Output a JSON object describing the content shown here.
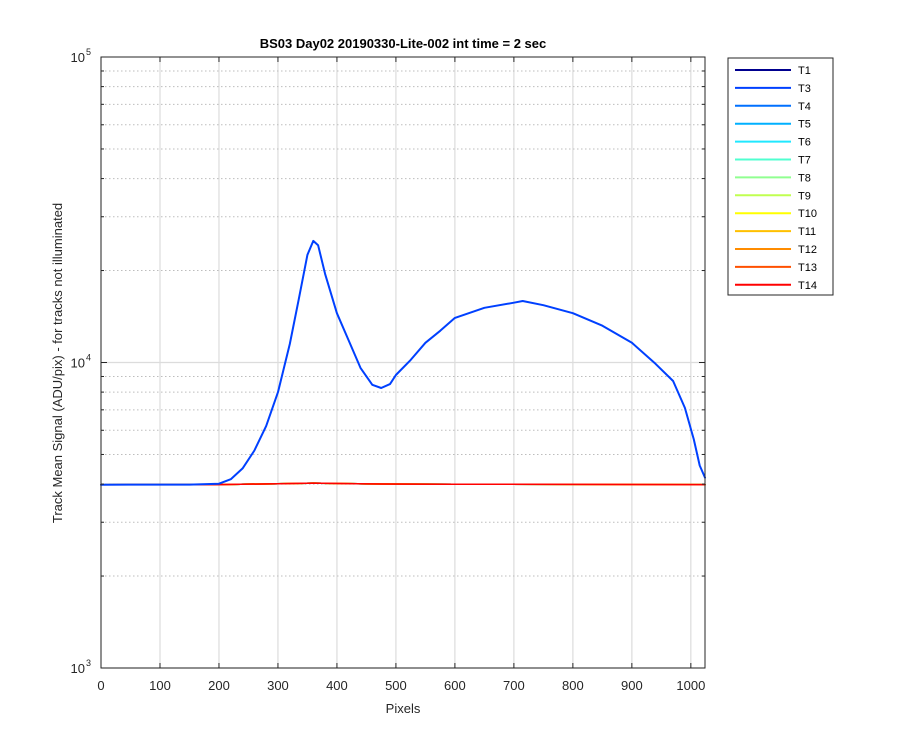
{
  "chart_data": {
    "type": "line",
    "title": "BS03 Day02 20190330-Lite-002 int time = 2 sec",
    "xlabel": "Pixels",
    "ylabel": "Track Mean Signal (ADU/pix) - for tracks not illuminated",
    "xlim": [
      0,
      1024
    ],
    "ylim": [
      1000,
      100000
    ],
    "yscale": "log",
    "grid": true,
    "legend_position": "outside-top-right",
    "x_ticks": [
      0,
      100,
      200,
      300,
      400,
      500,
      600,
      700,
      800,
      900,
      1000
    ],
    "y_tick_labels": [
      {
        "base": "10",
        "exp": "3",
        "value": 1000
      },
      {
        "base": "10",
        "exp": "4",
        "value": 10000
      },
      {
        "base": "10",
        "exp": "5",
        "value": 100000
      }
    ],
    "series": [
      {
        "name": "T1",
        "color": "#00008f",
        "profile": "flat"
      },
      {
        "name": "T3",
        "color": "#0040ff",
        "profile": "peak",
        "linewidth": 2,
        "points": [
          [
            0,
            3980
          ],
          [
            150,
            3985
          ],
          [
            200,
            4010
          ],
          [
            220,
            4150
          ],
          [
            240,
            4500
          ],
          [
            260,
            5150
          ],
          [
            280,
            6200
          ],
          [
            300,
            8000
          ],
          [
            320,
            11500
          ],
          [
            335,
            16000
          ],
          [
            350,
            22500
          ],
          [
            360,
            25000
          ],
          [
            368,
            24200
          ],
          [
            380,
            19500
          ],
          [
            400,
            14500
          ],
          [
            420,
            11800
          ],
          [
            440,
            9600
          ],
          [
            460,
            8450
          ],
          [
            475,
            8250
          ],
          [
            490,
            8500
          ],
          [
            500,
            9100
          ],
          [
            525,
            10200
          ],
          [
            550,
            11600
          ],
          [
            575,
            12700
          ],
          [
            600,
            14000
          ],
          [
            650,
            15100
          ],
          [
            700,
            15700
          ],
          [
            715,
            15900
          ],
          [
            750,
            15400
          ],
          [
            800,
            14500
          ],
          [
            850,
            13200
          ],
          [
            900,
            11600
          ],
          [
            940,
            9900
          ],
          [
            970,
            8700
          ],
          [
            990,
            7100
          ],
          [
            1005,
            5600
          ],
          [
            1015,
            4600
          ],
          [
            1024,
            4200
          ]
        ]
      },
      {
        "name": "T4",
        "color": "#0070ff",
        "profile": "flat"
      },
      {
        "name": "T5",
        "color": "#00b0ff",
        "profile": "flat"
      },
      {
        "name": "T6",
        "color": "#20e8ff",
        "profile": "flat"
      },
      {
        "name": "T7",
        "color": "#50ffd0",
        "profile": "flat"
      },
      {
        "name": "T8",
        "color": "#90ff90",
        "profile": "flat"
      },
      {
        "name": "T9",
        "color": "#c0ff50",
        "profile": "flat"
      },
      {
        "name": "T10",
        "color": "#ffff00",
        "profile": "flat"
      },
      {
        "name": "T11",
        "color": "#ffc000",
        "profile": "flat"
      },
      {
        "name": "T12",
        "color": "#ff8c00",
        "profile": "flat"
      },
      {
        "name": "T13",
        "color": "#ff5000",
        "profile": "flat"
      },
      {
        "name": "T14",
        "color": "#ff0000",
        "profile": "flat"
      }
    ],
    "flat_profile": [
      [
        0,
        3980
      ],
      [
        200,
        3985
      ],
      [
        300,
        4010
      ],
      [
        360,
        4030
      ],
      [
        450,
        4005
      ],
      [
        600,
        3995
      ],
      [
        800,
        3990
      ],
      [
        1024,
        3985
      ]
    ]
  }
}
